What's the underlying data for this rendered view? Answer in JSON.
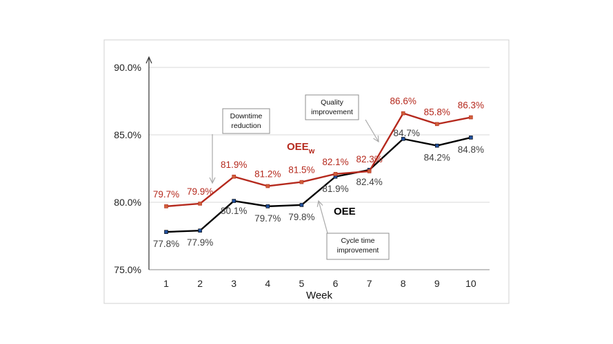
{
  "chart_data": {
    "type": "line",
    "title": "",
    "xlabel": "Week",
    "ylabel": "",
    "x": [
      1,
      2,
      3,
      4,
      5,
      6,
      7,
      8,
      9,
      10
    ],
    "x_tick_labels": [
      "1",
      "2",
      "3",
      "4",
      "5",
      "6",
      "7",
      "8",
      "9",
      "10"
    ],
    "y_tick_labels": [
      "75.0%",
      "80.0%",
      "85.0%",
      "90.0%"
    ],
    "y_ticks": [
      75,
      80,
      85,
      90
    ],
    "ylim": [
      75,
      90
    ],
    "grid": "horizontal",
    "series": [
      {
        "name": "OEE",
        "name_main": "OEE",
        "name_sub": "",
        "color": "#000000",
        "values": [
          77.8,
          77.9,
          80.1,
          79.7,
          79.8,
          81.9,
          82.4,
          84.7,
          84.2,
          84.8
        ],
        "labels": [
          "77.8%",
          "77.9%",
          "80.1%",
          "79.7%",
          "79.8%",
          "81.9%",
          "82.4%",
          "84.7%",
          "84.2%",
          "84.8%"
        ],
        "label_color": "#404040"
      },
      {
        "name": "OEEw",
        "name_main": "OEE",
        "name_sub": "w",
        "color": "#b5291d",
        "values": [
          79.7,
          79.9,
          81.9,
          81.2,
          81.5,
          82.1,
          82.3,
          86.6,
          85.8,
          86.3
        ],
        "labels": [
          "79.7%",
          "79.9%",
          "81.9%",
          "81.2%",
          "81.5%",
          "82.1%",
          "82.3%",
          "86.6%",
          "85.8%",
          "86.3%"
        ],
        "label_color": "#b5291d"
      }
    ],
    "annotations": [
      {
        "text_lines": [
          "Downtime",
          "reduction"
        ]
      },
      {
        "text_lines": [
          "Quality",
          "improvement"
        ]
      },
      {
        "text_lines": [
          "Cycle time",
          "improvement"
        ]
      }
    ]
  }
}
